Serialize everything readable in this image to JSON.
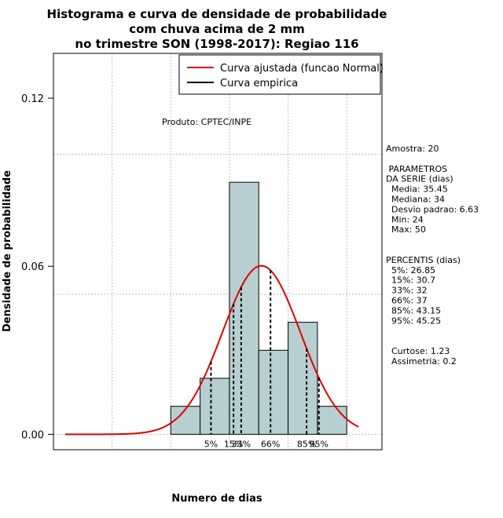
{
  "chart_data": {
    "type": "histogram",
    "title_lines": [
      "Histograma e curva de densidade de probabilidade",
      "com chuva acima de 2 mm",
      "no trimestre SON (1998-2017): Regiao 116"
    ],
    "xlabel": "Numero de dias",
    "ylabel": "Densidade de probabilidade",
    "xlim": [
      0,
      56
    ],
    "ylim": [
      -0.0055,
      0.136
    ],
    "y_ticks": [
      {
        "value": 0.0,
        "label": "0.00"
      },
      {
        "value": 0.06,
        "label": "0.06"
      },
      {
        "value": 0.12,
        "label": "0.12"
      }
    ],
    "grid": true,
    "bar_color": "#b7cfd0",
    "bins": [
      {
        "start": 20,
        "end": 25,
        "density": 0.01
      },
      {
        "start": 25,
        "end": 30,
        "density": 0.02
      },
      {
        "start": 30,
        "end": 35,
        "density": 0.09
      },
      {
        "start": 35,
        "end": 40,
        "density": 0.03
      },
      {
        "start": 40,
        "end": 45,
        "density": 0.04
      },
      {
        "start": 45,
        "end": 50,
        "density": 0.01
      }
    ],
    "normal_curve": {
      "mean": 35.45,
      "sd": 6.63,
      "x_from": 2,
      "x_to": 52,
      "color": "#e00000"
    },
    "percentiles": [
      {
        "label": "5%",
        "value": 26.85
      },
      {
        "label": "15%",
        "value": 30.7
      },
      {
        "label": "33%",
        "value": 32
      },
      {
        "label": "66%",
        "value": 37
      },
      {
        "label": "85%",
        "value": 43.15
      },
      {
        "label": "95%",
        "value": 45.25
      }
    ],
    "legend": {
      "placement": "top-right",
      "items": [
        {
          "label": "Curva ajustada (funcao Normal)",
          "color": "#e00000"
        },
        {
          "label": "Curva empirica",
          "color": "#000000"
        }
      ]
    },
    "annotation": "Produto: CPTEC/INPE"
  },
  "side_panel": {
    "lines": [
      "Amostra: 20",
      "",
      " PARAMETROS",
      "DA SERIE (dias)",
      "  Media: 35.45",
      "  Mediana: 34",
      "  Desvio padrao: 6.63",
      "  Min: 24",
      "  Max: 50",
      "",
      "",
      "PERCENTIS (dias)",
      "  5%: 26.85",
      "  15%: 30.7",
      "  33%: 32",
      "  66%: 37",
      "  85%: 43.15",
      "  95%: 45.25",
      "",
      "",
      "  Curtose: 1.23",
      "  Assimetria: 0.2"
    ]
  }
}
